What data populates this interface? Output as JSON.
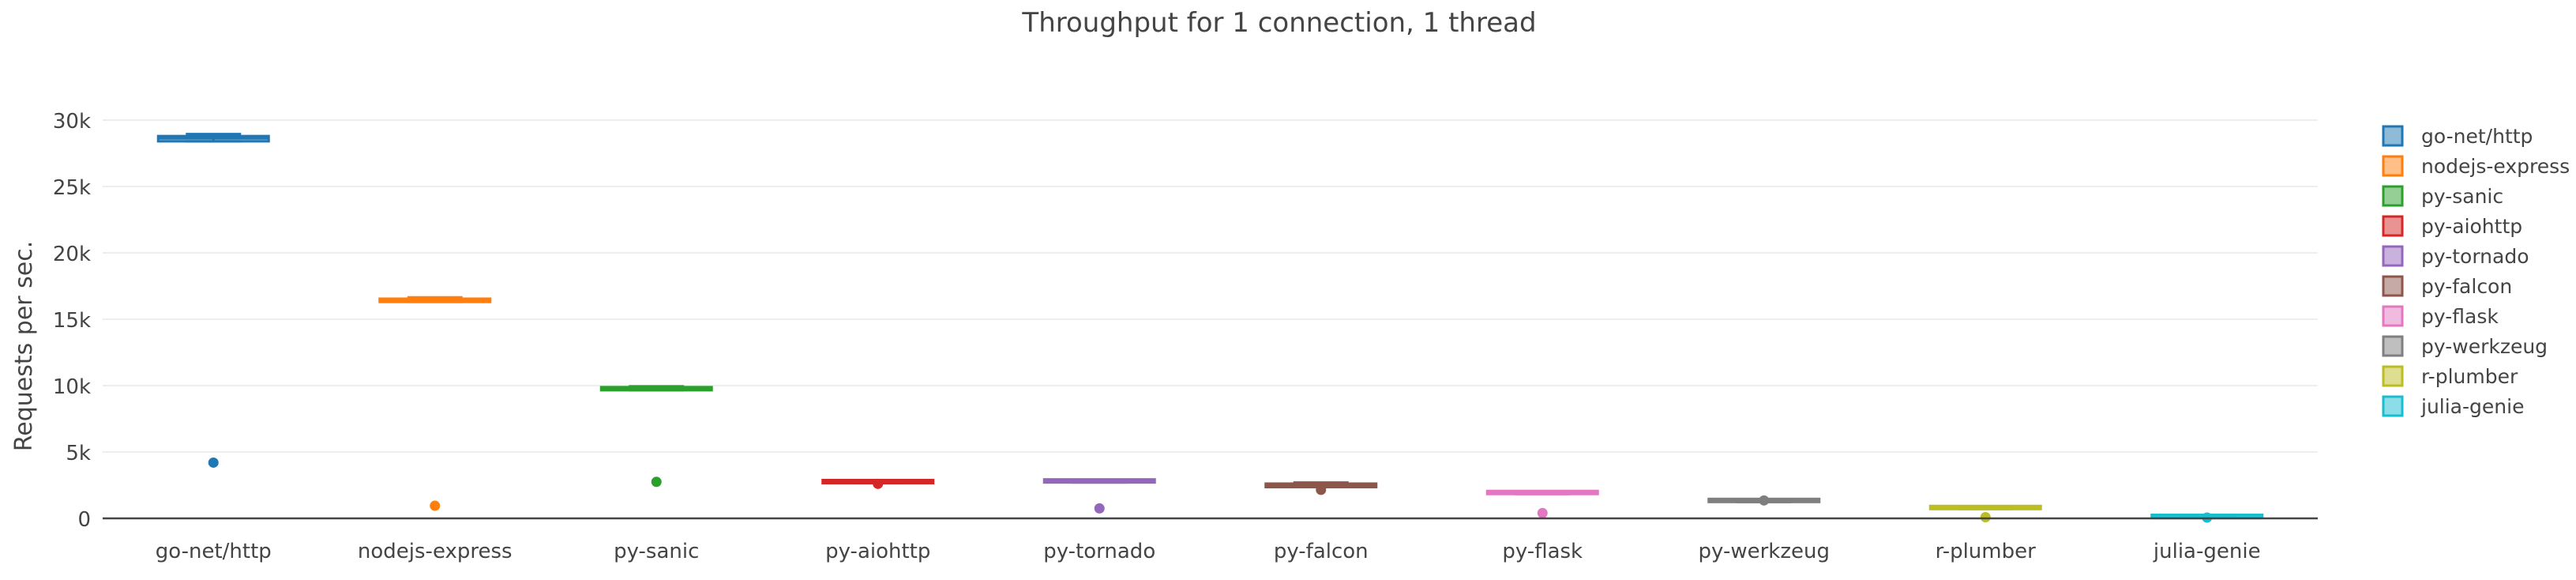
{
  "chart_data": {
    "type": "box",
    "title": "Throughput for 1 connection, 1 thread",
    "xlabel": "",
    "ylabel": "Requests per sec.",
    "ylim": [
      0,
      30000
    ],
    "y_ticks": [
      0,
      5000,
      10000,
      15000,
      20000,
      25000,
      30000
    ],
    "y_tick_labels": [
      "0",
      "5k",
      "10k",
      "15k",
      "20k",
      "25k",
      "30k"
    ],
    "grid": true,
    "legend_position": "right",
    "categories": [
      "go-net/http",
      "nodejs-express",
      "py-sanic",
      "py-aiohttp",
      "py-tornado",
      "py-falcon",
      "py-flask",
      "py-werkzeug",
      "r-plumber",
      "julia-genie"
    ],
    "series": [
      {
        "name": "go-net/http",
        "color": "#1f77b4",
        "q1": 28400,
        "median": 28650,
        "q3": 28800,
        "whisker_low": 28400,
        "whisker_high": 28950,
        "outliers": [
          4200
        ]
      },
      {
        "name": "nodejs-express",
        "color": "#ff7f0e",
        "q1": 16300,
        "median": 16400,
        "q3": 16550,
        "whisker_low": 16300,
        "whisker_high": 16650,
        "outliers": [
          950
        ]
      },
      {
        "name": "py-sanic",
        "color": "#2ca02c",
        "q1": 9650,
        "median": 9750,
        "q3": 9850,
        "whisker_low": 9650,
        "whisker_high": 9950,
        "outliers": [
          2750
        ]
      },
      {
        "name": "py-aiohttp",
        "color": "#d62728",
        "q1": 2650,
        "median": 2750,
        "q3": 2820,
        "whisker_low": 2650,
        "whisker_high": 2870,
        "outliers": [
          2600
        ]
      },
      {
        "name": "py-tornado",
        "color": "#9467bd",
        "q1": 2700,
        "median": 2760,
        "q3": 2810,
        "whisker_low": 2700,
        "whisker_high": 2840,
        "outliers": [
          750
        ]
      },
      {
        "name": "py-falcon",
        "color": "#8c564b",
        "q1": 2350,
        "median": 2500,
        "q3": 2620,
        "whisker_low": 2350,
        "whisker_high": 2700,
        "outliers": [
          2150
        ]
      },
      {
        "name": "py-flask",
        "color": "#e377c2",
        "q1": 1830,
        "median": 1880,
        "q3": 1920,
        "whisker_low": 1830,
        "whisker_high": 1940,
        "outliers": [
          400
        ]
      },
      {
        "name": "py-werkzeug",
        "color": "#7f7f7f",
        "q1": 1230,
        "median": 1300,
        "q3": 1360,
        "whisker_low": 1230,
        "whisker_high": 1380,
        "outliers": [
          1350
        ]
      },
      {
        "name": "r-plumber",
        "color": "#bcbd22",
        "q1": 700,
        "median": 740,
        "q3": 780,
        "whisker_low": 700,
        "whisker_high": 790,
        "outliers": [
          90
        ]
      },
      {
        "name": "julia-genie",
        "color": "#17becf",
        "q1": 30,
        "median": 50,
        "q3": 70,
        "whisker_low": 30,
        "whisker_high": 80,
        "outliers": [
          60
        ]
      }
    ]
  }
}
